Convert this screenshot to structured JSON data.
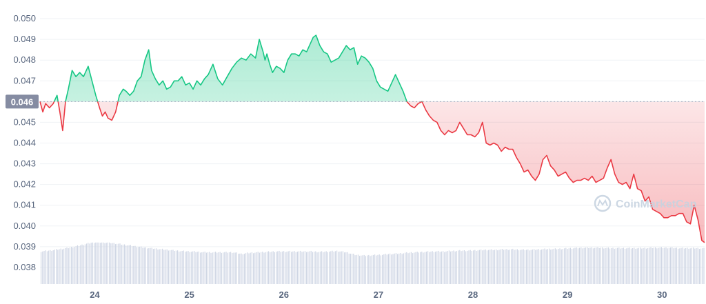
{
  "chart_data": {
    "type": "line",
    "title": "",
    "xlabel": "",
    "ylabel": "",
    "ylim": [
      0.0372,
      0.0505
    ],
    "xlim": [
      23.42,
      30.45
    ],
    "y_ticks": [
      "0.050",
      "0.049",
      "0.048",
      "0.047",
      "0.046",
      "0.045",
      "0.044",
      "0.043",
      "0.042",
      "0.041",
      "0.040",
      "0.039",
      "0.038"
    ],
    "x_ticks": [
      {
        "label": "24",
        "value": 24
      },
      {
        "label": "25",
        "value": 25
      },
      {
        "label": "26",
        "value": 26
      },
      {
        "label": "27",
        "value": 27
      },
      {
        "label": "28",
        "value": 28
      },
      {
        "label": "29",
        "value": 29
      },
      {
        "label": "30",
        "value": 30
      }
    ],
    "reference_line": {
      "label": "0.046",
      "value": 0.046
    },
    "grid": true,
    "colors": {
      "above": "#16c784",
      "below": "#ea3943",
      "volume": "#cfd6e4",
      "grid": "#eff2f5",
      "ref_label_bg": "#858ca2"
    },
    "series": [
      {
        "x": [
          23.42,
          23.45,
          23.48,
          23.52,
          23.56,
          23.6,
          23.63,
          23.66,
          23.69,
          23.72,
          23.76,
          23.8,
          23.84,
          23.88,
          23.93,
          23.97,
          24.01,
          24.05,
          24.08,
          24.11,
          24.14,
          24.18,
          24.22,
          24.26,
          24.3,
          24.33,
          24.37,
          24.41,
          24.45,
          24.49,
          24.53,
          24.57,
          24.6,
          24.64,
          24.68,
          24.72,
          24.76,
          24.8,
          24.84,
          24.88,
          24.92,
          24.96,
          25.0,
          25.04,
          25.08,
          25.12,
          25.16,
          25.2,
          25.25,
          25.3,
          25.35,
          25.4,
          25.45,
          25.5,
          25.55,
          25.6,
          25.65,
          25.7,
          25.74,
          25.78,
          25.8,
          25.82,
          25.85,
          25.88,
          25.92,
          25.96,
          26.0,
          26.04,
          26.08,
          26.12,
          26.16,
          26.2,
          26.24,
          26.28,
          26.31,
          26.34,
          26.38,
          26.42,
          26.46,
          26.5,
          26.54,
          26.58,
          26.62,
          26.66,
          26.7,
          26.74,
          26.78,
          26.82,
          26.86,
          26.9,
          26.94,
          26.98,
          27.02,
          27.06,
          27.1,
          27.14,
          27.18,
          27.22,
          27.26,
          27.3,
          27.34,
          27.38,
          27.42,
          27.46,
          27.5,
          27.54,
          27.58,
          27.62,
          27.66,
          27.7,
          27.74,
          27.78,
          27.82,
          27.86,
          27.9,
          27.94,
          27.98,
          28.02,
          28.06,
          28.1,
          28.14,
          28.18,
          28.22,
          28.26,
          28.3,
          28.34,
          28.38,
          28.42,
          28.46,
          28.5,
          28.54,
          28.58,
          28.62,
          28.66,
          28.7,
          28.74,
          28.78,
          28.82,
          28.86,
          28.9,
          28.94,
          28.98,
          29.02,
          29.06,
          29.1,
          29.14,
          29.18,
          29.22,
          29.26,
          29.3,
          29.34,
          29.38,
          29.42,
          29.46,
          29.5,
          29.54,
          29.58,
          29.62,
          29.66,
          29.7,
          29.74,
          29.78,
          29.82,
          29.86,
          29.9,
          29.94,
          29.98,
          30.02,
          30.06,
          30.1,
          30.14,
          30.18,
          30.22,
          30.26,
          30.3,
          30.34,
          30.38,
          30.42,
          30.45
        ],
        "y": [
          0.046,
          0.0455,
          0.0459,
          0.0457,
          0.0459,
          0.0463,
          0.0455,
          0.0446,
          0.046,
          0.0466,
          0.0475,
          0.0472,
          0.0474,
          0.0472,
          0.0477,
          0.047,
          0.0463,
          0.0457,
          0.0453,
          0.0455,
          0.0452,
          0.0451,
          0.0455,
          0.0463,
          0.0466,
          0.0465,
          0.0463,
          0.0465,
          0.047,
          0.0472,
          0.048,
          0.0485,
          0.0475,
          0.0471,
          0.0468,
          0.047,
          0.0466,
          0.0467,
          0.047,
          0.047,
          0.0472,
          0.0468,
          0.0469,
          0.0466,
          0.047,
          0.0468,
          0.0471,
          0.0473,
          0.0478,
          0.0471,
          0.0468,
          0.0472,
          0.0476,
          0.0479,
          0.0481,
          0.048,
          0.0483,
          0.0481,
          0.049,
          0.0484,
          0.048,
          0.0483,
          0.0478,
          0.0474,
          0.0477,
          0.0476,
          0.0474,
          0.048,
          0.0483,
          0.0483,
          0.0482,
          0.0485,
          0.0484,
          0.0488,
          0.0491,
          0.0492,
          0.0487,
          0.0484,
          0.0483,
          0.0479,
          0.048,
          0.0481,
          0.0484,
          0.0487,
          0.0485,
          0.0486,
          0.0478,
          0.0482,
          0.0481,
          0.0479,
          0.0476,
          0.047,
          0.0467,
          0.0466,
          0.0465,
          0.0469,
          0.0473,
          0.0469,
          0.0465,
          0.046,
          0.0458,
          0.0457,
          0.0459,
          0.046,
          0.0456,
          0.0453,
          0.0451,
          0.045,
          0.0446,
          0.0444,
          0.0446,
          0.0445,
          0.0446,
          0.045,
          0.0447,
          0.0444,
          0.0444,
          0.0443,
          0.0445,
          0.045,
          0.044,
          0.0439,
          0.044,
          0.0439,
          0.0436,
          0.0438,
          0.0437,
          0.0437,
          0.0433,
          0.043,
          0.0426,
          0.0427,
          0.0424,
          0.0422,
          0.0425,
          0.0432,
          0.0434,
          0.0429,
          0.0427,
          0.0424,
          0.0425,
          0.0426,
          0.0423,
          0.0421,
          0.0422,
          0.0422,
          0.0423,
          0.0422,
          0.0424,
          0.0421,
          0.0422,
          0.0423,
          0.0428,
          0.0432,
          0.0425,
          0.0421,
          0.042,
          0.0421,
          0.0418,
          0.0425,
          0.0418,
          0.0417,
          0.0412,
          0.0414,
          0.0408,
          0.0407,
          0.0406,
          0.0404,
          0.0404,
          0.0405,
          0.0405,
          0.0406,
          0.0406,
          0.0402,
          0.0401,
          0.041,
          0.0403,
          0.0393,
          0.0392
        ]
      }
    ],
    "volume": {
      "label": "volume bars",
      "relative_levels": [
        0.78,
        0.8,
        0.83,
        0.86,
        0.9,
        0.95,
        1.0,
        1.0,
        0.99,
        0.96,
        0.93,
        0.9,
        0.87,
        0.85,
        0.83,
        0.81,
        0.79,
        0.78,
        0.77,
        0.76,
        0.76,
        0.76,
        0.76,
        0.72,
        0.75,
        0.76,
        0.77,
        0.78,
        0.78,
        0.78,
        0.78,
        0.78,
        0.77,
        0.78,
        0.79,
        0.76,
        0.7,
        0.68,
        0.69,
        0.7,
        0.72,
        0.73,
        0.75,
        0.76,
        0.77,
        0.78,
        0.78,
        0.79,
        0.8,
        0.8,
        0.81,
        0.82,
        0.82,
        0.83,
        0.83,
        0.82,
        0.82,
        0.83,
        0.84,
        0.84,
        0.85,
        0.86,
        0.87,
        0.87,
        0.87,
        0.86,
        0.86,
        0.86,
        0.86,
        0.86,
        0.87,
        0.87,
        0.87,
        0.86,
        0.86,
        0.86,
        0.85
      ]
    }
  },
  "watermark": {
    "text": "CoinMarketCap",
    "icon": "coinmarketcap-logo-icon"
  }
}
